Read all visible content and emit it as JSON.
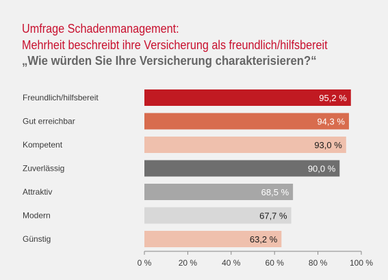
{
  "title_line1": "Umfrage Schadenmanagement:",
  "title_line2": "Mehrheit beschreibt ihre Versicherung als freundlich/hilfsbereit",
  "title_line3": "„Wie würden Sie Ihre Versicherung charakterisieren?“",
  "chart_data": {
    "type": "bar",
    "orientation": "horizontal",
    "categories": [
      "Freundlich/hilfsbereit",
      "Gut erreichbar",
      "Kompetent",
      "Zuverlässig",
      "Attraktiv",
      "Modern",
      "Günstig"
    ],
    "values": [
      95.2,
      94.3,
      93.0,
      90.0,
      68.5,
      67.7,
      63.2
    ],
    "value_labels": [
      "95,2 %",
      "94,3 %",
      "93,0 %",
      "90,0 %",
      "68,5 %",
      "67,7 %",
      "63,2 %"
    ],
    "bar_colors": [
      "#c11a22",
      "#d86c4e",
      "#efc0ad",
      "#6e6e6e",
      "#a7a7a7",
      "#d8d8d8",
      "#efc0ad"
    ],
    "label_colors": [
      "#ffffff",
      "#ffffff",
      "#1a1a1a",
      "#ffffff",
      "#ffffff",
      "#1a1a1a",
      "#1a1a1a"
    ],
    "xlim": [
      0,
      100
    ],
    "xticks": [
      0,
      20,
      40,
      60,
      80,
      100
    ],
    "xtick_labels": [
      "0 %",
      "20 %",
      "40 %",
      "60 %",
      "80 %",
      "100 %"
    ],
    "title": "„Wie würden Sie Ihre Versicherung charakterisieren?“",
    "xlabel": "",
    "ylabel": "",
    "grid": false,
    "legend": "none"
  }
}
